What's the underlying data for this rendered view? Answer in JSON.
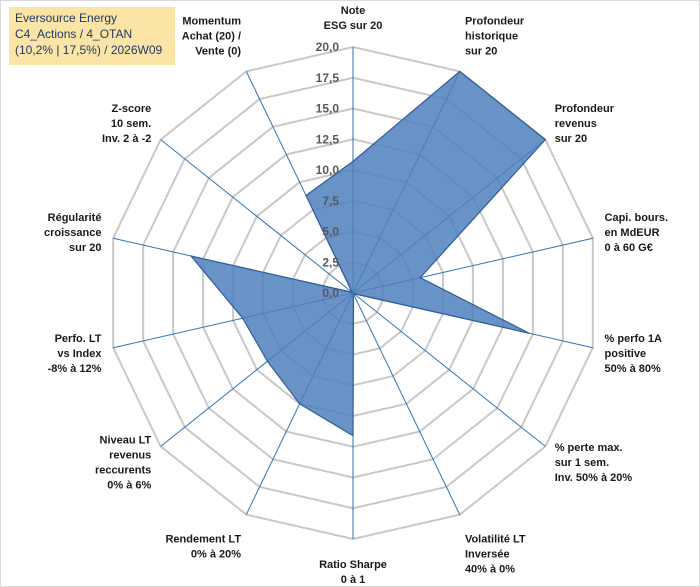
{
  "title_box": {
    "line1": "Eversource Energy",
    "line2": "C4_Actions / 4_OTAN",
    "line3": "(10,2% | 17,5%) / 2026W09",
    "background": "#fbe5a6",
    "text_color": "#1f3864"
  },
  "chart_data": {
    "type": "radar",
    "title": "",
    "range": [
      0,
      20
    ],
    "step": 2.5,
    "tick_labels": [
      "0,0",
      "2,5",
      "5,0",
      "7,5",
      "10,0",
      "12,5",
      "15,0",
      "17,5",
      "20,0"
    ],
    "axes": [
      {
        "lines": [
          "Note",
          "ESG sur 20"
        ]
      },
      {
        "lines": [
          "Profondeur",
          "historique",
          "sur 20"
        ]
      },
      {
        "lines": [
          "Profondeur",
          "revenus",
          "sur 20"
        ]
      },
      {
        "lines": [
          "Capi. bours.",
          "en MdEUR",
          "0 à 60 G€"
        ]
      },
      {
        "lines": [
          "% perfo 1A",
          "positive",
          "50% à 80%"
        ]
      },
      {
        "lines": [
          "% perte max.",
          "sur 1 sem.",
          "Inv. 50% à 20%"
        ]
      },
      {
        "lines": [
          "Volatilité LT",
          "Inversée",
          "40% à 0%"
        ]
      },
      {
        "lines": [
          "Ratio Sharpe",
          "0 à 1"
        ]
      },
      {
        "lines": [
          "Rendement LT",
          "0% à 20%"
        ]
      },
      {
        "lines": [
          "Niveau LT",
          "revenus",
          "reccurents",
          "0% à 6%"
        ]
      },
      {
        "lines": [
          "Perfo. LT",
          "vs Index",
          "-8% à 12%"
        ]
      },
      {
        "lines": [
          "Régularité",
          "croissance",
          "sur 20"
        ]
      },
      {
        "lines": [
          "Z-score",
          "10 sem.",
          "Inv. 2 à -2"
        ]
      },
      {
        "lines": [
          "Momentum",
          "Achat (20) /",
          "Vente (0)"
        ]
      }
    ],
    "series": [
      {
        "name": "Eversource Energy",
        "values": [
          10.7,
          20.0,
          20.0,
          5.6,
          14.7,
          0.1,
          0.1,
          11.6,
          10.0,
          8.9,
          9.2,
          13.5,
          0.1,
          8.8
        ],
        "fill": "#4f7fbd",
        "stroke": "#2f5d9a"
      }
    ],
    "colors": {
      "grid": "#c8c8c8",
      "spokes": "#2e75b6"
    }
  }
}
